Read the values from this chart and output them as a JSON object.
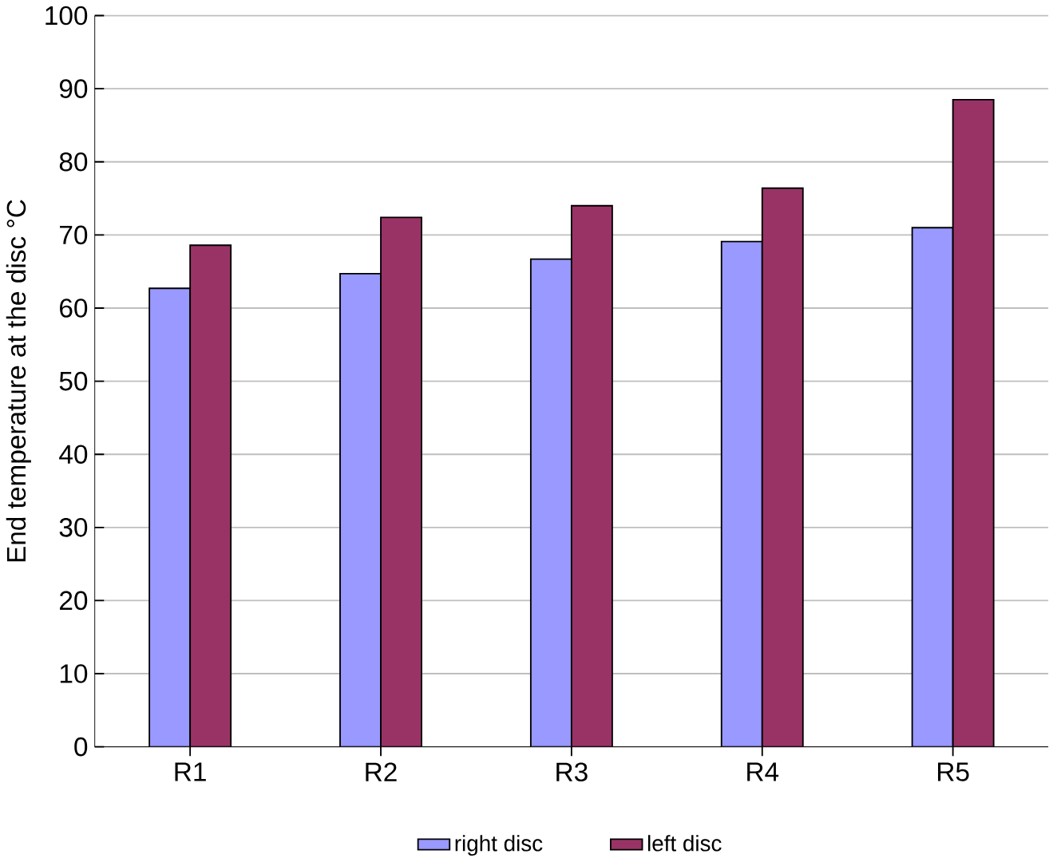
{
  "chart_data": {
    "type": "bar",
    "ylabel": "End temperature at the disc  °C",
    "categories": [
      "R1",
      "R2",
      "R3",
      "R4",
      "R5"
    ],
    "series": [
      {
        "name": "right disc",
        "color": "#9999ff",
        "values": [
          62.7,
          64.7,
          66.7,
          69.1,
          71.0
        ]
      },
      {
        "name": "left disc",
        "color": "#993366",
        "values": [
          68.6,
          72.4,
          74.0,
          76.4,
          88.5
        ]
      }
    ],
    "ylim": [
      0,
      100
    ],
    "yticks": [
      0,
      10,
      20,
      30,
      40,
      50,
      60,
      70,
      80,
      90,
      100
    ],
    "grid": "y",
    "legend": "bottom"
  }
}
